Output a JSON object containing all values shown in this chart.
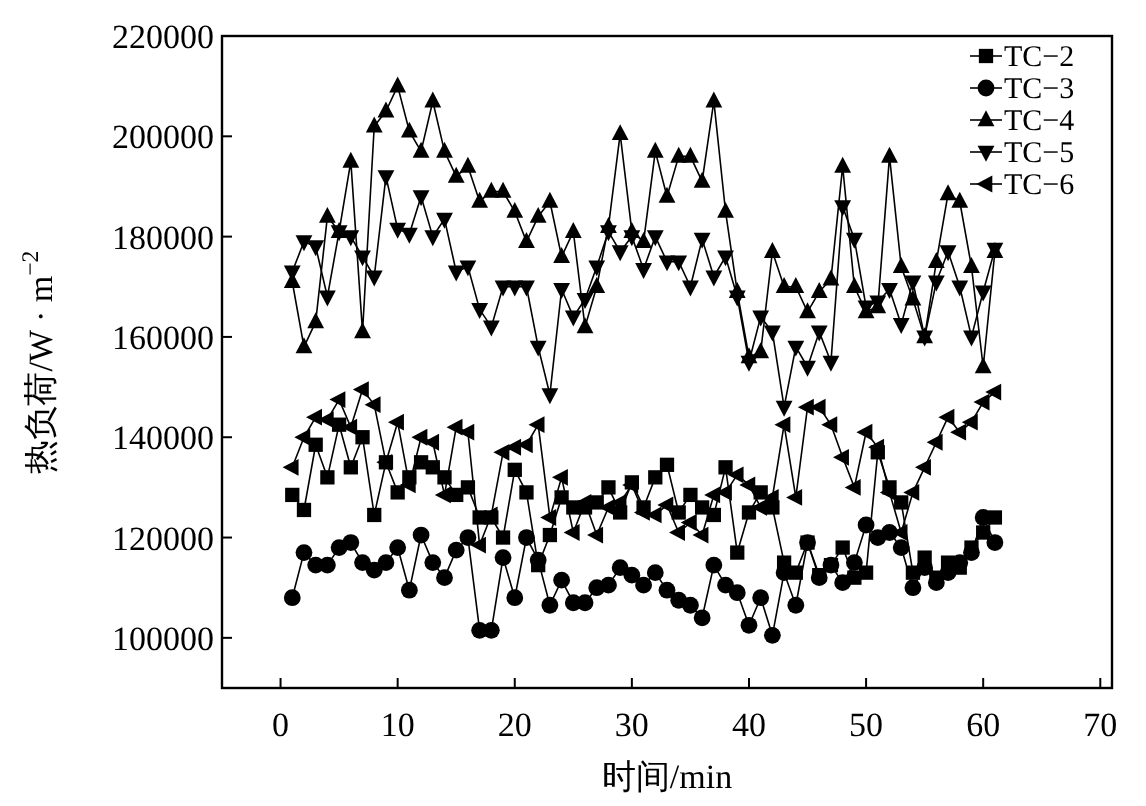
{
  "chart_data": {
    "type": "line",
    "xlabel": "时间/min",
    "ylabel": "热负荷/W · m$^{−2}$",
    "xlim": [
      -5,
      71
    ],
    "xticks": [
      0,
      10,
      20,
      30,
      40,
      50,
      60,
      70
    ],
    "ylim": [
      90000,
      220000
    ],
    "yticks": [
      100000,
      120000,
      140000,
      160000,
      180000,
      200000,
      220000
    ],
    "x": [
      1,
      2,
      3,
      4,
      5,
      6,
      7,
      8,
      9,
      10,
      11,
      12,
      13,
      14,
      15,
      16,
      17,
      18,
      19,
      20,
      21,
      22,
      23,
      24,
      25,
      26,
      27,
      28,
      29,
      30,
      31,
      32,
      33,
      34,
      35,
      36,
      37,
      38,
      39,
      40,
      41,
      42,
      43,
      44,
      45,
      46,
      47,
      48,
      49,
      50,
      51,
      52,
      53,
      54,
      55,
      56,
      57,
      58,
      59,
      60,
      61
    ],
    "grid": false,
    "legend": "top right",
    "line_style": "solid",
    "series": [
      {
        "name": "TC−2",
        "color": "#000000",
        "marker": "square",
        "values": [
          128500,
          125500,
          138500,
          132000,
          142500,
          134000,
          140000,
          124500,
          135000,
          129000,
          132000,
          135000,
          134000,
          132000,
          128500,
          130000,
          124000,
          124000,
          120000,
          133500,
          129000,
          114500,
          120500,
          128000,
          126000,
          126000,
          127000,
          130000,
          125000,
          131000,
          126000,
          132000,
          134500,
          125000,
          128500,
          126000,
          124500,
          134000,
          117000,
          125000,
          129000,
          126000,
          115000,
          113000,
          119000,
          112500,
          114500,
          118000,
          112000,
          113000,
          137000,
          130000,
          127000,
          113000,
          116000,
          112000,
          115000,
          114000,
          118000,
          121000,
          124000
        ]
      },
      {
        "name": "TC−3",
        "color": "#000000",
        "marker": "circle",
        "values": [
          108000,
          117000,
          114500,
          114500,
          118000,
          119000,
          115000,
          113500,
          115000,
          118000,
          109500,
          120500,
          115000,
          112000,
          117500,
          120000,
          101500,
          101500,
          116000,
          108000,
          120000,
          115500,
          106500,
          111500,
          107000,
          107000,
          110000,
          110500,
          114000,
          112500,
          110500,
          113000,
          109500,
          107500,
          106500,
          104000,
          114500,
          110500,
          109000,
          102500,
          108000,
          100500,
          113000,
          106500,
          119000,
          112000,
          114500,
          111000,
          115000,
          122500,
          120000,
          121000,
          118000,
          110000,
          114000,
          111000,
          113000,
          115000,
          117000,
          124000,
          119000
        ]
      },
      {
        "name": "TC−4",
        "color": "#000000",
        "marker": "triangle",
        "values": [
          171000,
          158000,
          163000,
          184000,
          181000,
          195000,
          161000,
          202000,
          205000,
          210000,
          201000,
          197000,
          207000,
          197000,
          192000,
          194000,
          187000,
          189000,
          189000,
          185000,
          179000,
          184000,
          187000,
          176000,
          181000,
          162000,
          170000,
          182000,
          200500,
          181000,
          179000,
          197000,
          188000,
          196000,
          196000,
          191000,
          207000,
          185000,
          169000,
          156000,
          157000,
          177000,
          170000,
          170000,
          165000,
          169000,
          171500,
          194000,
          170000,
          165000,
          166000,
          196000,
          174000,
          167500,
          160000,
          175000,
          188500,
          187000,
          174000,
          154000,
          177000
        ]
      },
      {
        "name": "TC−5",
        "color": "#000000",
        "marker": "triangle-down",
        "values": [
          173000,
          179000,
          178000,
          168000,
          181000,
          180000,
          176000,
          172000,
          192000,
          181500,
          180500,
          188000,
          180000,
          183500,
          173000,
          174000,
          165500,
          162000,
          170000,
          170000,
          170000,
          158000,
          148500,
          169500,
          164000,
          167500,
          174000,
          181000,
          177000,
          180000,
          173500,
          180000,
          175000,
          175000,
          170000,
          179500,
          172000,
          176000,
          168000,
          155000,
          164000,
          161000,
          146000,
          158000,
          154000,
          161000,
          155000,
          186000,
          179500,
          166000,
          167000,
          169500,
          162500,
          171000,
          160000,
          171000,
          177000,
          170000,
          160000,
          169000,
          177500
        ]
      },
      {
        "name": "TC−6",
        "color": "#000000",
        "marker": "triangle-left",
        "values": [
          134000,
          140000,
          144000,
          143500,
          147500,
          142000,
          149500,
          146500,
          135000,
          143000,
          130500,
          140000,
          139000,
          128500,
          142000,
          141000,
          118500,
          124500,
          137000,
          138000,
          138500,
          142500,
          124000,
          132000,
          121000,
          127000,
          120500,
          126000,
          127000,
          130500,
          125000,
          124500,
          126500,
          121000,
          123000,
          120500,
          128500,
          129000,
          132500,
          130500,
          126000,
          128000,
          142500,
          128000,
          146000,
          146000,
          142500,
          136000,
          130000,
          141000,
          138000,
          129000,
          121000,
          129000,
          134000,
          139000,
          144000,
          141000,
          143000,
          147000,
          149000
        ]
      }
    ]
  }
}
